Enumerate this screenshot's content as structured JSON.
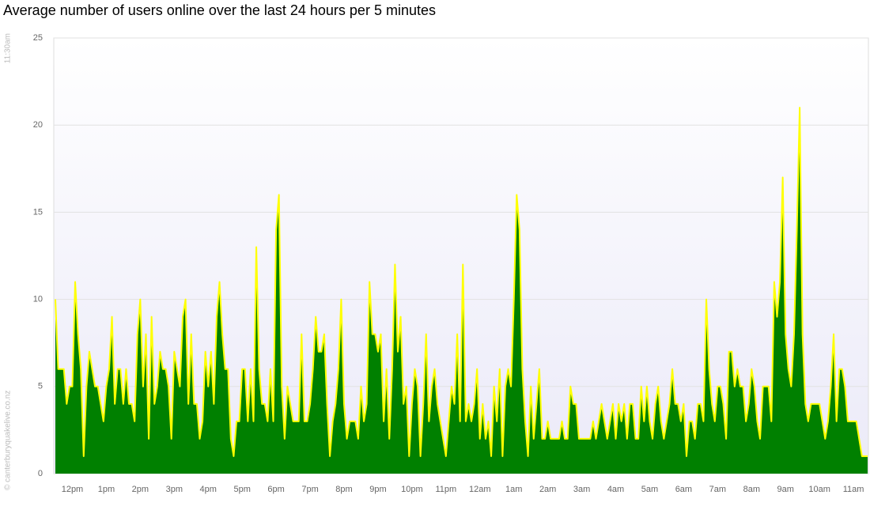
{
  "chart_data": {
    "type": "area",
    "title": "Average number of users online over the last 24 hours per 5 minutes",
    "start_label": "11:30am",
    "credit": "© canterburyquakelive.co.nz",
    "color": "#008000",
    "line_color": "#ffff00",
    "grid": true,
    "ylim": [
      0,
      25
    ],
    "yticks": [
      0,
      5,
      10,
      15,
      20,
      25
    ],
    "categories": [
      null,
      null,
      null,
      null,
      null,
      null,
      "12pm",
      null,
      null,
      null,
      null,
      null,
      null,
      null,
      null,
      null,
      null,
      null,
      "1pm",
      null,
      null,
      null,
      null,
      null,
      null,
      null,
      null,
      null,
      null,
      null,
      "2pm",
      null,
      null,
      null,
      null,
      null,
      null,
      null,
      null,
      null,
      null,
      null,
      "3pm",
      null,
      null,
      null,
      null,
      null,
      null,
      null,
      null,
      null,
      null,
      null,
      "4pm",
      null,
      null,
      null,
      null,
      null,
      null,
      null,
      null,
      null,
      null,
      null,
      "5pm",
      null,
      null,
      null,
      null,
      null,
      null,
      null,
      null,
      null,
      null,
      null,
      "6pm",
      null,
      null,
      null,
      null,
      null,
      null,
      null,
      null,
      null,
      null,
      null,
      "7pm",
      null,
      null,
      null,
      null,
      null,
      null,
      null,
      null,
      null,
      null,
      null,
      "8pm",
      null,
      null,
      null,
      null,
      null,
      null,
      null,
      null,
      null,
      null,
      null,
      "9pm",
      null,
      null,
      null,
      null,
      null,
      null,
      null,
      null,
      null,
      null,
      null,
      "10pm",
      null,
      null,
      null,
      null,
      null,
      null,
      null,
      null,
      null,
      null,
      null,
      "11pm",
      null,
      null,
      null,
      null,
      null,
      null,
      null,
      null,
      null,
      null,
      null,
      "12am",
      null,
      null,
      null,
      null,
      null,
      null,
      null,
      null,
      null,
      null,
      null,
      "1am",
      null,
      null,
      null,
      null,
      null,
      null,
      null,
      null,
      null,
      null,
      null,
      "2am",
      null,
      null,
      null,
      null,
      null,
      null,
      null,
      null,
      null,
      null,
      null,
      "3am",
      null,
      null,
      null,
      null,
      null,
      null,
      null,
      null,
      null,
      null,
      null,
      "4am",
      null,
      null,
      null,
      null,
      null,
      null,
      null,
      null,
      null,
      null,
      null,
      "5am",
      null,
      null,
      null,
      null,
      null,
      null,
      null,
      null,
      null,
      null,
      null,
      "6am",
      null,
      null,
      null,
      null,
      null,
      null,
      null,
      null,
      null,
      null,
      null,
      "7am",
      null,
      null,
      null,
      null,
      null,
      null,
      null,
      null,
      null,
      null,
      null,
      "8am",
      null,
      null,
      null,
      null,
      null,
      null,
      null,
      null,
      null,
      null,
      null,
      "9am",
      null,
      null,
      null,
      null,
      null,
      null,
      null,
      null,
      null,
      null,
      null,
      "10am",
      null,
      null,
      null,
      null,
      null,
      null,
      null,
      null,
      null,
      null,
      null,
      "11am",
      null,
      null,
      null,
      null,
      null
    ],
    "values": [
      10,
      6,
      6,
      6,
      4,
      5,
      5,
      11,
      8,
      6,
      1,
      5,
      7,
      6,
      5,
      5,
      4,
      3,
      5,
      6,
      9,
      4,
      6,
      6,
      4,
      6,
      4,
      4,
      3,
      8,
      10,
      5,
      8,
      2,
      9,
      4,
      5,
      7,
      6,
      6,
      5,
      2,
      7,
      6,
      5,
      9,
      10,
      4,
      8,
      4,
      4,
      2,
      3,
      7,
      5,
      7,
      4,
      9,
      11,
      8,
      6,
      6,
      2,
      1,
      3,
      3,
      6,
      6,
      3,
      6,
      3,
      13,
      6,
      4,
      4,
      3,
      6,
      3,
      14,
      16,
      5,
      2,
      5,
      4,
      3,
      3,
      3,
      8,
      3,
      3,
      4,
      6,
      9,
      7,
      7,
      8,
      4,
      1,
      3,
      4,
      6,
      10,
      4,
      2,
      3,
      3,
      3,
      2,
      5,
      3,
      4,
      11,
      8,
      8,
      7,
      8,
      3,
      6,
      2,
      6,
      12,
      7,
      9,
      4,
      5,
      1,
      4,
      6,
      5,
      1,
      4,
      8,
      3,
      5,
      6,
      4,
      3,
      2,
      1,
      3,
      5,
      4,
      8,
      3,
      12,
      3,
      4,
      3,
      4,
      6,
      2,
      4,
      2,
      3,
      1,
      5,
      3,
      6,
      1,
      5,
      6,
      5,
      10,
      16,
      14,
      6,
      3,
      1,
      5,
      2,
      4,
      6,
      2,
      2,
      3,
      2,
      2,
      2,
      2,
      3,
      2,
      2,
      5,
      4,
      4,
      2,
      2,
      2,
      2,
      2,
      3,
      2,
      3,
      4,
      3,
      2,
      3,
      4,
      2,
      4,
      3,
      4,
      2,
      4,
      4,
      2,
      2,
      5,
      3,
      5,
      3,
      2,
      4,
      5,
      3,
      2,
      3,
      4,
      6,
      4,
      4,
      3,
      4,
      1,
      3,
      3,
      2,
      4,
      4,
      3,
      10,
      6,
      4,
      3,
      5,
      5,
      4,
      2,
      7,
      7,
      5,
      6,
      5,
      5,
      3,
      4,
      6,
      5,
      3,
      2,
      5,
      5,
      5,
      3,
      11,
      9,
      11,
      17,
      8,
      6,
      5,
      8,
      14,
      21,
      8,
      4,
      3,
      4,
      4,
      4,
      4,
      3,
      2,
      3,
      5,
      8,
      3,
      6,
      6,
      5,
      3,
      3,
      3,
      3,
      2,
      1,
      1,
      1
    ]
  }
}
